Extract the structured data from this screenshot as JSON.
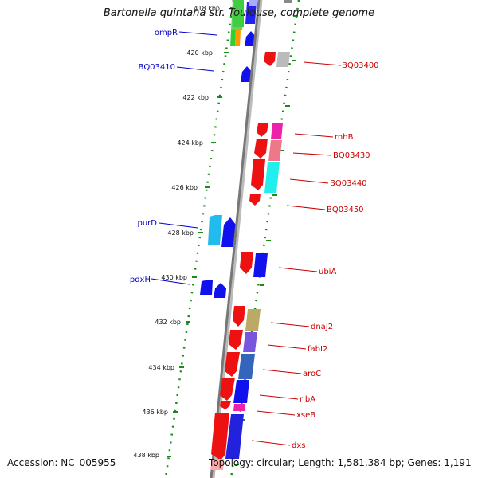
{
  "title": "Bartonella quintana str. Toulouse, complete genome",
  "footer": {
    "accession": "Accession: NC_005955",
    "topology": "Topology: circular; Length: 1,581,384 bp; Genes: 1,191"
  },
  "colors": {
    "tick": "#1a8a1a",
    "backbone": "#777777",
    "reverse_label": "#0000cc",
    "forward_label": "#cc0000"
  },
  "scale_labels": [
    "418 kbp",
    "420 kbp",
    "422 kbp",
    "424 kbp",
    "426 kbp",
    "428 kbp",
    "430 kbp",
    "432 kbp",
    "434 kbp",
    "436 kbp",
    "438 kbp"
  ],
  "reverse_genes": [
    {
      "label": "ompR"
    },
    {
      "label": "BQ03410"
    },
    {
      "label": "purD"
    },
    {
      "label": "pdxH"
    }
  ],
  "forward_genes": [
    {
      "label": "BQ03400"
    },
    {
      "label": "rnhB"
    },
    {
      "label": "BQ03430"
    },
    {
      "label": "BQ03440"
    },
    {
      "label": "BQ03450"
    },
    {
      "label": "ubiA"
    },
    {
      "label": "dnaJ2"
    },
    {
      "label": "fabI2"
    },
    {
      "label": "aroC"
    },
    {
      "label": "ribA"
    },
    {
      "label": "xseB"
    },
    {
      "label": "dxs"
    }
  ]
}
